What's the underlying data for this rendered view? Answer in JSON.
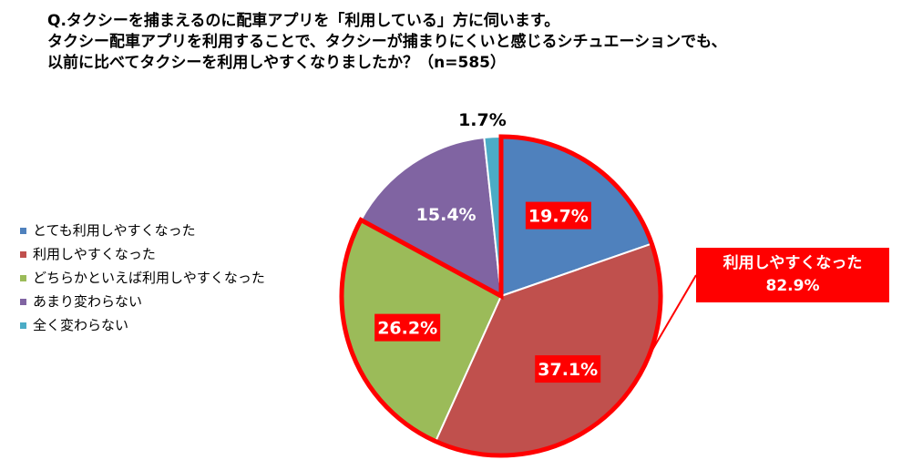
{
  "title_lines": [
    "Q.タクシーを捕まえるのに配車アプリを「利用している」方に伺います。",
    "タクシー配車アプリを利用することで、タクシーが捕まりにくいと感じるシチュエーションでも、",
    "以前に比べてタクシーを利用しやすくなりましたか？（n=585）"
  ],
  "chart_data": {
    "type": "pie",
    "n": 585,
    "start_angle_deg": 0,
    "direction": "clockwise",
    "slices": [
      {
        "name": "とても利用しやすくなった",
        "value": 19.7,
        "label": "19.7%",
        "color": "#4f81bd",
        "highlight": true
      },
      {
        "name": "利用しやすくなった",
        "value": 37.1,
        "label": "37.1%",
        "color": "#c0504d",
        "highlight": true
      },
      {
        "name": "どちらかといえば利用しやすくなった",
        "value": 26.2,
        "label": "26.2%",
        "color": "#9bbb59",
        "highlight": true
      },
      {
        "name": "あまり変わらない",
        "value": 15.4,
        "label": "15.4%",
        "color": "#8064a2",
        "highlight": false
      },
      {
        "name": "全く変わらない",
        "value": 1.7,
        "label": "1.7%",
        "color": "#4bacc6",
        "highlight": false
      }
    ],
    "highlight_color": "#ff0000",
    "legend_position": "left",
    "callout": {
      "line1": "利用しやすくなった",
      "line2": "82.9%"
    }
  }
}
